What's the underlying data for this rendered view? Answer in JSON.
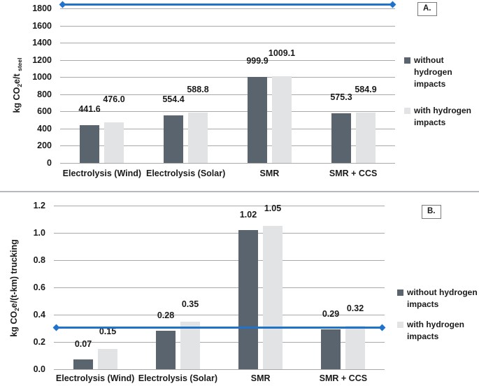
{
  "chart_data": [
    {
      "type": "bar",
      "panel_label": "A.",
      "title": "",
      "xlabel": "",
      "ylabel": "kg CO2e/t steel",
      "ylabel_parts": [
        {
          "text": "kg CO"
        },
        {
          "text": "2",
          "sub": true
        },
        {
          "text": "e/t "
        },
        {
          "text": "steel",
          "sub": true
        }
      ],
      "categories": [
        "Electrolysis (Wind)",
        "Electrolysis (Solar)",
        "SMR",
        "SMR + CCS"
      ],
      "series": [
        {
          "name": "without hydrogen impacts",
          "legend_lines": [
            "without",
            "hydrogen",
            "impacts"
          ],
          "color": "#5a646e",
          "values": [
            441.6,
            554.4,
            999.9,
            575.3
          ],
          "value_labels": [
            "441.6",
            "554.4",
            "999.9",
            "575.3"
          ]
        },
        {
          "name": "with hydrogen impacts",
          "legend_lines": [
            "with hydrogen",
            "impacts"
          ],
          "color": "#e2e3e5",
          "values": [
            476.0,
            588.8,
            1009.1,
            584.9
          ],
          "value_labels": [
            "476.0",
            "588.8",
            "1009.1",
            "584.9"
          ]
        }
      ],
      "y_ticks": [
        {
          "label": "0",
          "value": 0
        },
        {
          "label": "200",
          "value": 200
        },
        {
          "label": "400",
          "value": 400
        },
        {
          "label": "600",
          "value": 600
        },
        {
          "label": "800",
          "value": 800
        },
        {
          "label": "1000",
          "value": 1000
        },
        {
          "label": "1200",
          "value": 1200
        },
        {
          "label": "1400",
          "value": 1400
        },
        {
          "label": "1600",
          "value": 1600
        },
        {
          "label": "1800",
          "value": 1800
        }
      ],
      "ylim": [
        0,
        1880
      ],
      "grid": true,
      "legend_position": "right",
      "reference_line": {
        "value": 1850,
        "color": "#2173c9",
        "marker": "diamond-endpoints"
      }
    },
    {
      "type": "bar",
      "panel_label": "B.",
      "title": "",
      "xlabel": "",
      "ylabel": "kg CO2e/(t-km) trucking",
      "ylabel_parts": [
        {
          "text": "kg CO"
        },
        {
          "text": "2",
          "sub": true
        },
        {
          "text": "e/(t-km) trucking"
        }
      ],
      "categories": [
        "Electrolysis (Wind)",
        "Electrolysis (Solar)",
        "SMR",
        "SMR + CCS"
      ],
      "series": [
        {
          "name": "without hydrogen impacts",
          "legend_lines": [
            "without hydrogen",
            "impacts"
          ],
          "color": "#5a646e",
          "values": [
            0.07,
            0.28,
            1.02,
            0.29
          ],
          "value_labels": [
            "0.07",
            "0.28",
            "1.02",
            "0.29"
          ]
        },
        {
          "name": "with hydrogen impacts",
          "legend_lines": [
            "with hydrogen",
            "impacts"
          ],
          "color": "#e2e3e5",
          "values": [
            0.15,
            0.35,
            1.05,
            0.32
          ],
          "value_labels": [
            "0.15",
            "0.35",
            "1.05",
            "0.32"
          ]
        }
      ],
      "y_ticks": [
        {
          "label": "0.0",
          "value": 0.0
        },
        {
          "label": "0.2",
          "value": 0.2
        },
        {
          "label": "0.4",
          "value": 0.4
        },
        {
          "label": "0.6",
          "value": 0.6
        },
        {
          "label": "0.8",
          "value": 0.8
        },
        {
          "label": "1.0",
          "value": 1.0
        },
        {
          "label": "1.2",
          "value": 1.2
        }
      ],
      "ylim": [
        0,
        1.26
      ],
      "grid": true,
      "legend_position": "right",
      "reference_line": {
        "value": 0.31,
        "color": "#2173c9",
        "marker": "diamond-endpoints"
      }
    }
  ],
  "colors": {
    "series_dark": "#5a646e",
    "series_light": "#e2e3e5",
    "gridline": "#a9a9a9",
    "reference_line_blue": "#2173c9",
    "text": "#1a1a1a"
  }
}
